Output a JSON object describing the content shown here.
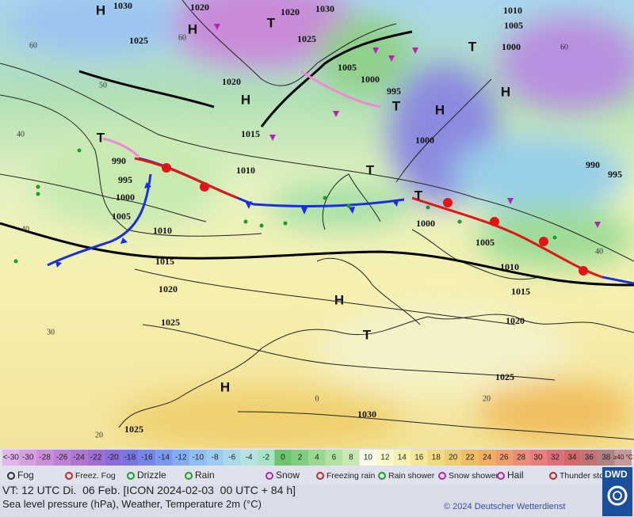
{
  "map": {
    "isobar_labels": [
      "1030",
      "1020",
      "1020",
      "1030",
      "1010",
      "1005",
      "1000",
      "1025",
      "1025",
      "1005",
      "1000",
      "995",
      "1020",
      "1015",
      "1010",
      "1000",
      "990",
      "995",
      "990",
      "995",
      "1000",
      "1005",
      "1010",
      "1015",
      "1020",
      "1025",
      "1000",
      "1005",
      "1010",
      "1015",
      "1020",
      "1025",
      "1030",
      "1025"
    ],
    "temperature_labels": [
      "60",
      "60",
      "50",
      "40",
      "40",
      "30",
      "20",
      "60",
      "40",
      "20",
      "0"
    ],
    "pressure_centers": [
      "H",
      "H",
      "H",
      "H",
      "H",
      "H",
      "H",
      "T",
      "T",
      "T",
      "T",
      "T",
      "T",
      "T"
    ]
  },
  "temperature_scale": {
    "labels": [
      "<-30",
      "-30",
      "-28",
      "-26",
      "-24",
      "-22",
      "-20",
      "-18",
      "-16",
      "-14",
      "-12",
      "-10",
      "-8",
      "-6",
      "-4",
      "-2",
      "0",
      "2",
      "4",
      "6",
      "8",
      "10",
      "12",
      "14",
      "16",
      "18",
      "20",
      "22",
      "24",
      "26",
      "28",
      "30",
      "32",
      "34",
      "36",
      "38",
      "≥40 °C"
    ],
    "colors": [
      "#e2b6ea",
      "#d89ee2",
      "#cb8edb",
      "#bd80d3",
      "#b075cf",
      "#a06ed2",
      "#8c6cd8",
      "#7a74e0",
      "#7486e8",
      "#7a9af0",
      "#84acf3",
      "#90bdf3",
      "#9ccbef",
      "#a9d8ea",
      "#b5e3e1",
      "#a8e3c6",
      "#6cc46c",
      "#82ce80",
      "#9ad890",
      "#b2e2a0",
      "#cae9b2",
      "#fbfbea",
      "#fbf8cc",
      "#f7f1b0",
      "#f3e898",
      "#f0dc80",
      "#efcd70",
      "#efbe62",
      "#efae60",
      "#ee9e6c",
      "#ea8e76",
      "#e67f7e",
      "#dd7076",
      "#d26a6a",
      "#c47272",
      "#b18282",
      "#c69898"
    ]
  },
  "weather_legend": [
    "Fog",
    "Freez. Fog",
    "Drizzle",
    "Rain",
    "Snow",
    "Freezing rain",
    "Rain shower",
    "Snow shower",
    "Hail",
    "Thunder storm"
  ],
  "footer": {
    "valid_time": "VT: 12 UTC Di.  06 Feb. [ICON 2024-02-03  00 UTC + 84 h]",
    "description": "Sea level pressure (hPa), Weather, Temperature 2m (°C)",
    "copyright": "© 2024 Deutscher Wetterdienst",
    "logo": "DWD"
  }
}
